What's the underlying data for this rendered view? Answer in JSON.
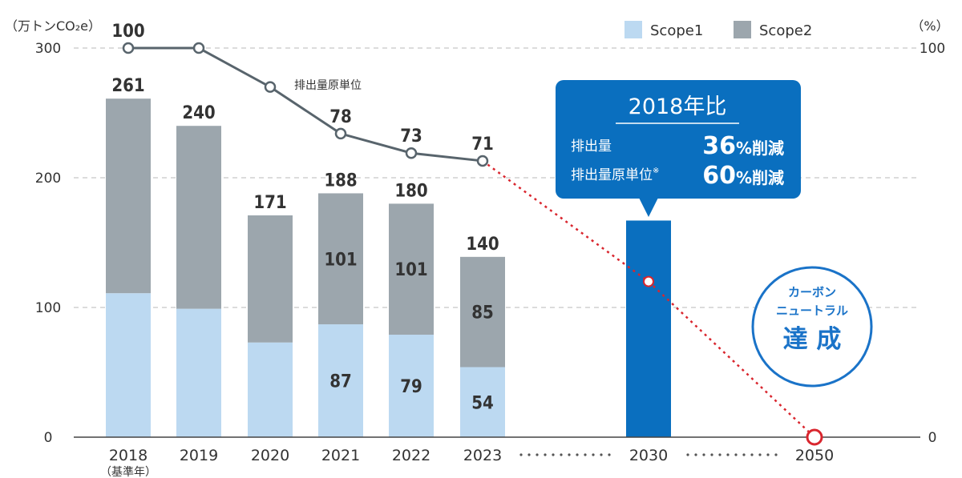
{
  "chart_data": {
    "type": "bar",
    "left_axis_unit": "（万トンCO₂e）",
    "right_axis_unit": "（%）",
    "left_axis": {
      "ylim": [
        0,
        300
      ],
      "ticks": [
        0,
        100,
        200,
        300
      ]
    },
    "right_axis": {
      "ylim": [
        0,
        100
      ],
      "ticks": [
        0,
        100
      ]
    },
    "gridlines": true,
    "legend": {
      "position": "top-right",
      "entries": [
        "Scope1",
        "Scope2"
      ]
    },
    "categories": [
      "2018",
      "2019",
      "2020",
      "2021",
      "2022",
      "2023",
      "2030",
      "2050"
    ],
    "category_note": {
      "2018": "（基準年）"
    },
    "series": [
      {
        "name": "Scope1",
        "color": "#bcd9f1",
        "values": [
          111,
          99,
          73,
          87,
          79,
          54,
          null,
          null
        ]
      },
      {
        "name": "Scope2",
        "color": "#9ca6ad",
        "values": [
          150,
          141,
          98,
          101,
          101,
          85,
          null,
          null
        ]
      }
    ],
    "shown_segment_labels": {
      "Scope1": [
        "",
        "",
        "",
        "87",
        "79",
        "54",
        "",
        ""
      ],
      "Scope2": [
        "",
        "",
        "",
        "101",
        "101",
        "85",
        "",
        ""
      ]
    },
    "totals": [
      261,
      240,
      171,
      188,
      180,
      140,
      null,
      null
    ],
    "target_2030": {
      "category": "2030",
      "value": 167,
      "color": "#0a6fbf"
    },
    "emission_intensity_line": {
      "name": "排出量原単位",
      "axis": "right",
      "color": "#58646c",
      "categories": [
        "2018",
        "2019",
        "2020",
        "2021",
        "2022",
        "2023"
      ],
      "values": [
        100,
        100,
        90,
        78,
        73,
        71
      ],
      "labels": [
        "100",
        "",
        "",
        "78",
        "73",
        "71"
      ]
    },
    "projection_line": {
      "color": "#d9262e",
      "style": "dotted",
      "points": [
        {
          "category": "2023",
          "value": 71
        },
        {
          "category": "2030",
          "value": 40
        },
        {
          "category": "2050",
          "value": 0
        }
      ]
    },
    "callout": {
      "title": "2018年比",
      "rows": [
        {
          "label": "排出量",
          "value": "36",
          "unit": "%削減"
        },
        {
          "label": "排出量原単位",
          "note": "※",
          "value": "60",
          "unit": "%削減"
        }
      ]
    },
    "carbon_neutral": {
      "lines": [
        "カーボン",
        "ニュートラル",
        "達 成"
      ],
      "category": "2050"
    }
  },
  "colors": {
    "scope1": "#bcd9f1",
    "scope2": "#9ca6ad",
    "target": "#0a6fbf",
    "line": "#58646c",
    "projection": "#d9262e",
    "accent_text": "#1a73c8"
  }
}
